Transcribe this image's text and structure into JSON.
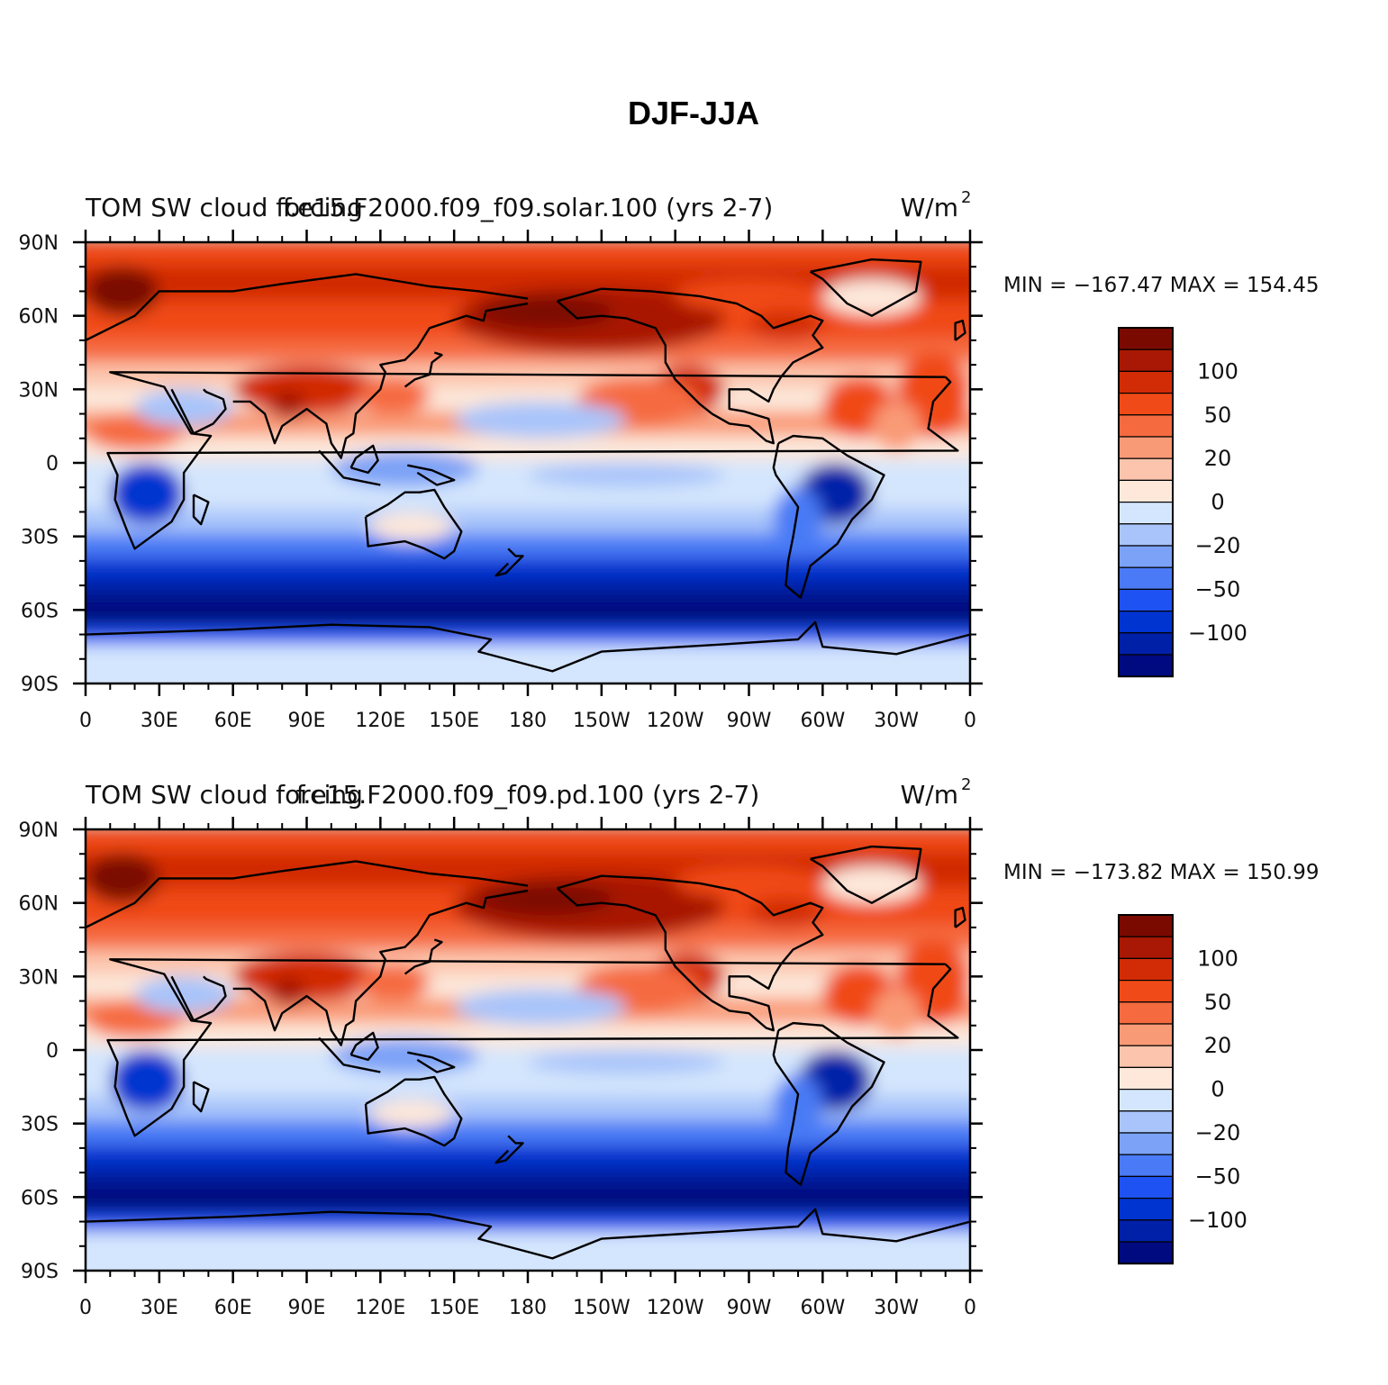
{
  "figure": {
    "title": "DJF-JJA"
  },
  "colors": {
    "levels": [
      "#000a80",
      "#0020a8",
      "#0034d0",
      "#1f52f2",
      "#4a7af5",
      "#7ba2f7",
      "#a8c4fa",
      "#d4e6fd",
      "#fde8da",
      "#fcc4ac",
      "#f99a76",
      "#f56b3f",
      "#f04a18",
      "#d22c06",
      "#a81804",
      "#7a0a00"
    ],
    "coast": "#000000",
    "frame": "#000000"
  },
  "chart_data": [
    {
      "type": "heatmap",
      "title_left": "TOM SW cloud forcing",
      "title_center": "f.e15.F2000.f09_f09.solar.100 (yrs 2-7)",
      "title_right": "W/m",
      "units_superscript": "2",
      "stats": "MIN = −167.47  MAX = 154.45",
      "min": -167.47,
      "max": 154.45,
      "x_ticks": [
        "0",
        "30E",
        "60E",
        "90E",
        "120E",
        "150E",
        "180",
        "150W",
        "120W",
        "90W",
        "60W",
        "30W",
        "0"
      ],
      "y_ticks": [
        "90N",
        "60N",
        "30N",
        "0",
        "30S",
        "60S",
        "90S"
      ],
      "xlim": [
        0,
        360
      ],
      "ylim": [
        -90,
        90
      ],
      "colorbar_labels": [
        "100",
        "50",
        "20",
        "0",
        "−20",
        "−50",
        "−100"
      ],
      "colorbar_levels": 16
    },
    {
      "type": "heatmap",
      "title_left": "TOM SW cloud forcing",
      "title_center": "f.e15.F2000.f09_f09.pd.100 (yrs 2-7)",
      "title_right": "W/m",
      "units_superscript": "2",
      "stats": "MIN = −173.82  MAX = 150.99",
      "min": -173.82,
      "max": 150.99,
      "x_ticks": [
        "0",
        "30E",
        "60E",
        "90E",
        "120E",
        "150E",
        "180",
        "150W",
        "120W",
        "90W",
        "60W",
        "30W",
        "0"
      ],
      "y_ticks": [
        "90N",
        "60N",
        "30N",
        "0",
        "30S",
        "60S",
        "90S"
      ],
      "xlim": [
        0,
        360
      ],
      "ylim": [
        -90,
        90
      ],
      "colorbar_labels": [
        "100",
        "50",
        "20",
        "0",
        "−20",
        "−50",
        "−100"
      ],
      "colorbar_levels": 16
    }
  ]
}
